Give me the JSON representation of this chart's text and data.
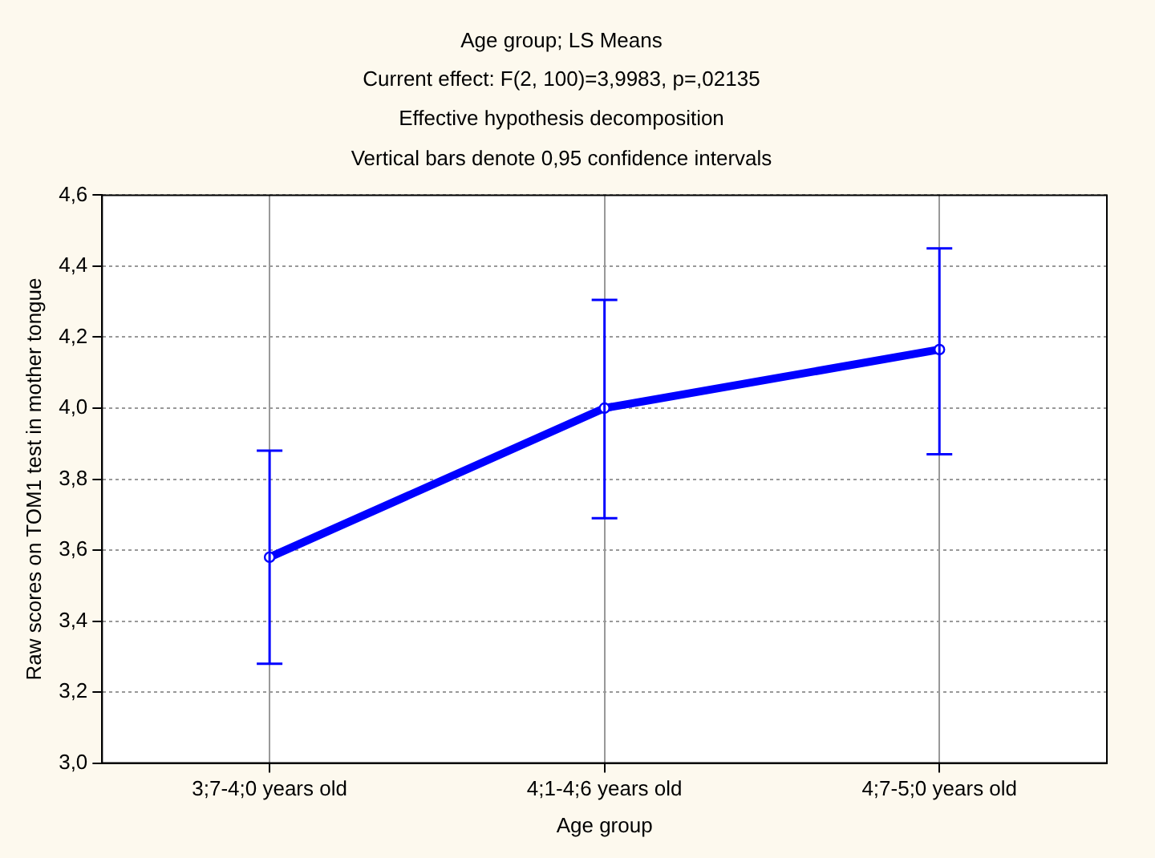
{
  "chart_data": {
    "type": "line",
    "title": "Age group; LS Means",
    "subtitle": "Current effect: F(2, 100)=3,9983, p=,02135",
    "annotations": [
      "Effective hypothesis decomposition",
      "Vertical bars denote 0,95 confidence intervals"
    ],
    "xlabel": "Age group",
    "ylabel": "Raw scores on TOM1 test in mother tongue",
    "categories": [
      "3;7-4;0 years old",
      "4;1-4;6 years old",
      "4;7-5;0 years old"
    ],
    "series": [
      {
        "color": "#0000ff",
        "values": [
          3.58,
          4.0,
          4.165
        ],
        "errors": [
          [
            3.28,
            3.88
          ],
          [
            3.69,
            4.305
          ],
          [
            3.87,
            4.45
          ]
        ]
      }
    ],
    "ylim": [
      3.0,
      4.6
    ],
    "yticks": [
      {
        "value": 3.0,
        "label": "3,0"
      },
      {
        "value": 3.2,
        "label": "3,2"
      },
      {
        "value": 3.4,
        "label": "3,4"
      },
      {
        "value": 3.6,
        "label": "3,6"
      },
      {
        "value": 3.8,
        "label": "3,8"
      },
      {
        "value": 4.0,
        "label": "4,0"
      },
      {
        "value": 4.2,
        "label": "4,2"
      },
      {
        "value": 4.4,
        "label": "4,4"
      },
      {
        "value": 4.6,
        "label": "4,6"
      }
    ],
    "grid": true,
    "marker": "circle",
    "line_style": "solid",
    "legend": false
  }
}
